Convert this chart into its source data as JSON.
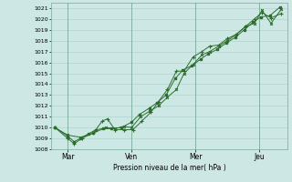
{
  "background_color": "#cde8e4",
  "grid_color": "#aad0c8",
  "line_color": "#2d6e2d",
  "marker_color": "#2d6e2d",
  "xlabel": "Pression niveau de la mer( hPa )",
  "ylim": [
    1008,
    1021.5
  ],
  "xlim": [
    -0.15,
    9.1
  ],
  "yticks": [
    1008,
    1009,
    1010,
    1011,
    1012,
    1013,
    1014,
    1015,
    1016,
    1017,
    1018,
    1019,
    1020,
    1021
  ],
  "x_tick_labels": [
    "Mar",
    "Ven",
    "Mer",
    "Jeu"
  ],
  "x_tick_positions": [
    0.5,
    3.0,
    5.5,
    8.0
  ],
  "x_vlines": [
    0.5,
    3.0,
    5.5,
    8.0
  ],
  "series1_x": [
    0.0,
    0.5,
    0.75,
    1.0,
    1.3,
    1.6,
    1.9,
    2.2,
    2.6,
    3.0,
    3.3,
    3.7,
    4.0,
    4.35,
    4.7,
    5.0,
    5.35,
    5.7,
    6.0,
    6.35,
    6.7,
    7.05,
    7.4,
    7.75,
    8.05,
    8.4,
    8.8
  ],
  "series1_y": [
    1010.0,
    1009.2,
    1008.7,
    1009.0,
    1009.4,
    1009.8,
    1009.9,
    1009.9,
    1010.0,
    1010.5,
    1011.2,
    1011.8,
    1012.3,
    1013.0,
    1014.5,
    1015.3,
    1015.7,
    1016.3,
    1016.8,
    1017.2,
    1017.8,
    1018.3,
    1019.0,
    1019.7,
    1020.2,
    1020.3,
    1021.1
  ],
  "series2_x": [
    0.0,
    0.5,
    0.75,
    1.05,
    1.5,
    1.85,
    2.05,
    2.35,
    2.7,
    3.05,
    3.4,
    3.75,
    4.05,
    4.4,
    4.75,
    5.05,
    5.4,
    5.75,
    6.05,
    6.4,
    6.75,
    7.1,
    7.45,
    7.8,
    8.1,
    8.45,
    8.85
  ],
  "series2_y": [
    1010.0,
    1009.0,
    1008.5,
    1009.0,
    1009.5,
    1010.6,
    1010.8,
    1009.8,
    1009.8,
    1009.8,
    1010.6,
    1011.4,
    1012.4,
    1013.5,
    1015.2,
    1015.2,
    1016.5,
    1017.0,
    1017.5,
    1017.6,
    1018.2,
    1018.6,
    1019.3,
    1020.0,
    1020.6,
    1020.1,
    1020.5
  ],
  "series3_x": [
    0.0,
    0.5,
    1.0,
    1.5,
    2.0,
    2.35,
    2.7,
    3.0,
    3.35,
    3.7,
    4.05,
    4.4,
    4.75,
    5.05,
    5.4,
    5.75,
    6.05,
    6.4,
    6.75,
    7.1,
    7.45,
    7.8,
    8.1,
    8.45,
    8.85
  ],
  "series3_y": [
    1010.0,
    1009.3,
    1009.1,
    1009.5,
    1010.0,
    1009.9,
    1010.1,
    1010.0,
    1011.0,
    1011.5,
    1012.0,
    1012.8,
    1013.5,
    1015.0,
    1015.8,
    1016.7,
    1017.0,
    1017.5,
    1018.0,
    1018.6,
    1019.3,
    1019.6,
    1020.8,
    1019.6,
    1020.9
  ]
}
